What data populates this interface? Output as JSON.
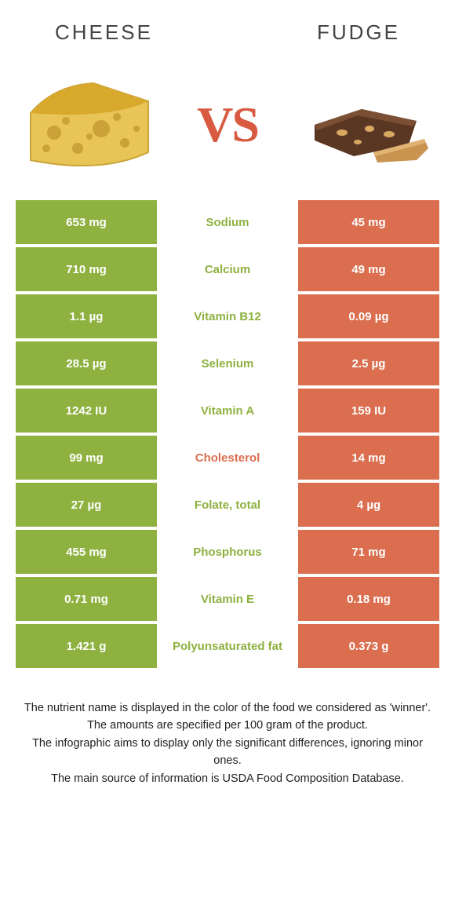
{
  "header": {
    "left": "Cheese",
    "right": "Fudge"
  },
  "vs_label": "VS",
  "colors": {
    "left_cell": "#8eb140",
    "right_cell": "#da6e4f",
    "mid_text_left_winner": "#8eb140",
    "mid_text_right_winner": "#da6e4f",
    "header_text": "#444444"
  },
  "rows": [
    {
      "left": "653 mg",
      "mid": "Sodium",
      "right": "45 mg",
      "winner": "left"
    },
    {
      "left": "710 mg",
      "mid": "Calcium",
      "right": "49 mg",
      "winner": "left"
    },
    {
      "left": "1.1 µg",
      "mid": "Vitamin B12",
      "right": "0.09 µg",
      "winner": "left"
    },
    {
      "left": "28.5 µg",
      "mid": "Selenium",
      "right": "2.5 µg",
      "winner": "left"
    },
    {
      "left": "1242 IU",
      "mid": "Vitamin A",
      "right": "159 IU",
      "winner": "left"
    },
    {
      "left": "99 mg",
      "mid": "Cholesterol",
      "right": "14 mg",
      "winner": "right"
    },
    {
      "left": "27 µg",
      "mid": "Folate, total",
      "right": "4 µg",
      "winner": "left"
    },
    {
      "left": "455 mg",
      "mid": "Phosphorus",
      "right": "71 mg",
      "winner": "left"
    },
    {
      "left": "0.71 mg",
      "mid": "Vitamin E",
      "right": "0.18 mg",
      "winner": "left"
    },
    {
      "left": "1.421 g",
      "mid": "Polyunsaturated fat",
      "right": "0.373 g",
      "winner": "left"
    }
  ],
  "footer": {
    "l1": "The nutrient name is displayed in the color of the food we considered as 'winner'.",
    "l2": "The amounts are specified per 100 gram of the product.",
    "l3": "The infographic aims to display only the significant differences, ignoring minor ones.",
    "l4": "The main source of information is USDA Food Composition Database."
  }
}
